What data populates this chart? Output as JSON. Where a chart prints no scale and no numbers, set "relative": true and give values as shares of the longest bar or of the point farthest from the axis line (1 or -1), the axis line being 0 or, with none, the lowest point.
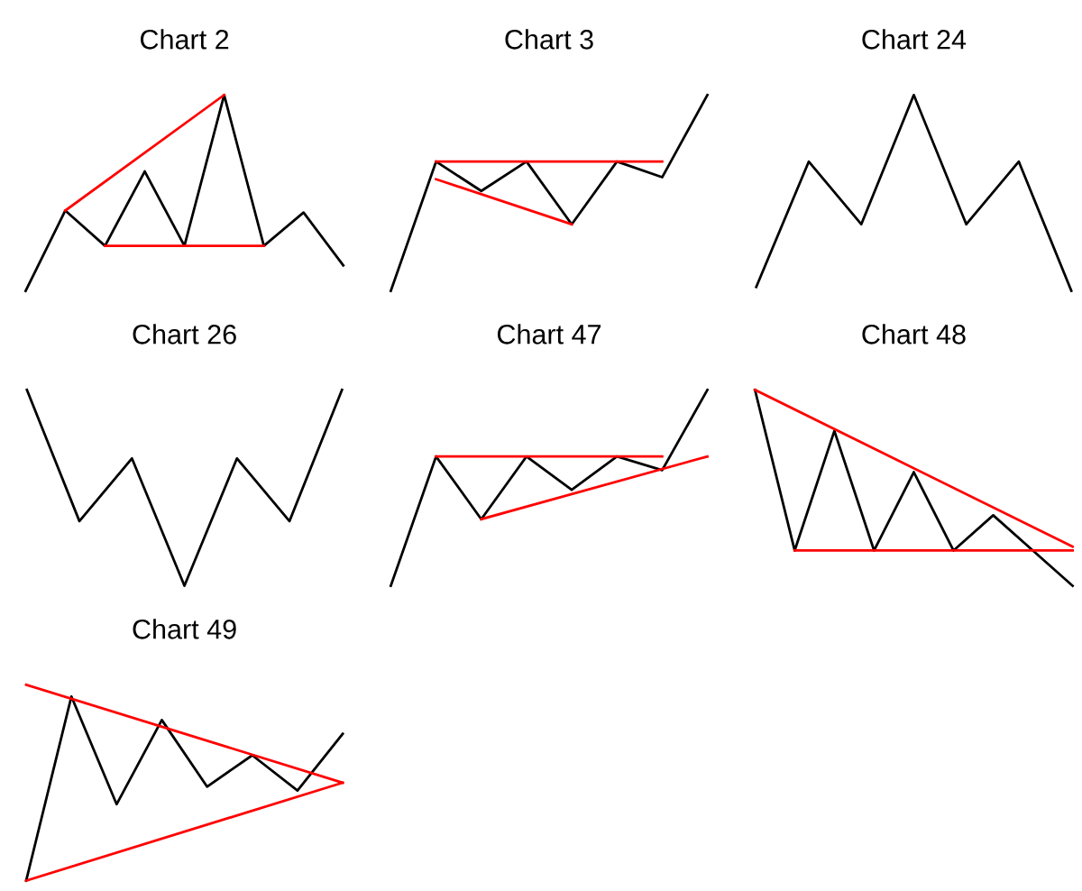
{
  "chart_data": [
    {
      "type": "line",
      "title": "Chart 2",
      "relative": true,
      "categories": [
        null,
        null,
        null,
        null,
        null,
        null,
        null,
        null,
        null
      ],
      "series": [
        {
          "color": "#000000",
          "values": [
            0,
            0.41,
            0.23,
            0.61,
            0.23,
            1,
            0.23,
            0.4,
            0.13
          ]
        },
        {
          "color": "#ff0000",
          "values": [
            null,
            0.41,
            null,
            null,
            null,
            1,
            null,
            null,
            null
          ]
        },
        {
          "color": "#ff0000",
          "values": [
            null,
            null,
            0.23,
            null,
            null,
            null,
            0.23,
            null,
            null
          ]
        }
      ]
    },
    {
      "type": "line",
      "title": "Chart 3",
      "relative": true,
      "categories": [
        null,
        null,
        null,
        null,
        null,
        null,
        null,
        null
      ],
      "series": [
        {
          "color": "#000000",
          "values": [
            0,
            0.66,
            0.51,
            0.66,
            0.34,
            0.66,
            0.58,
            1
          ]
        },
        {
          "color": "#ff0000",
          "values": [
            null,
            0.66,
            null,
            null,
            null,
            null,
            0.66,
            null
          ]
        },
        {
          "color": "#ff0000",
          "values": [
            null,
            0.57,
            null,
            null,
            0.34,
            null,
            null,
            null
          ]
        }
      ]
    },
    {
      "type": "line",
      "title": "Chart 24",
      "relative": true,
      "categories": [
        null,
        null,
        null,
        null,
        null,
        null,
        null
      ],
      "series": [
        {
          "color": "#000000",
          "values": [
            0.02,
            0.66,
            0.34,
            1,
            0.34,
            0.66,
            0
          ]
        }
      ]
    },
    {
      "type": "line",
      "title": "Chart 26",
      "relative": true,
      "categories": [
        null,
        null,
        null,
        null,
        null,
        null,
        null
      ],
      "series": [
        {
          "color": "#000000",
          "values": [
            1,
            0.33,
            0.65,
            0,
            0.65,
            0.33,
            1
          ]
        }
      ]
    },
    {
      "type": "line",
      "title": "Chart 47",
      "relative": true,
      "categories": [
        null,
        null,
        null,
        null,
        null,
        null,
        null,
        null
      ],
      "series": [
        {
          "color": "#000000",
          "values": [
            0,
            0.66,
            0.34,
            0.66,
            0.49,
            0.66,
            0.59,
            1
          ]
        },
        {
          "color": "#ff0000",
          "values": [
            null,
            0.66,
            null,
            null,
            null,
            null,
            0.66,
            null
          ]
        },
        {
          "color": "#ff0000",
          "values": [
            null,
            null,
            0.34,
            null,
            null,
            null,
            null,
            0.66
          ]
        }
      ]
    },
    {
      "type": "line",
      "title": "Chart 48",
      "relative": true,
      "categories": [
        null,
        null,
        null,
        null,
        null,
        null,
        null,
        null,
        null
      ],
      "series": [
        {
          "color": "#000000",
          "values": [
            1,
            0.18,
            0.79,
            0.18,
            0.58,
            0.18,
            0.36,
            0.18,
            0
          ]
        },
        {
          "color": "#ff0000",
          "values": [
            1,
            null,
            null,
            null,
            null,
            null,
            null,
            null,
            0.2
          ]
        },
        {
          "color": "#ff0000",
          "values": [
            null,
            0.18,
            null,
            null,
            null,
            null,
            null,
            null,
            0.18
          ]
        }
      ]
    },
    {
      "type": "line",
      "title": "Chart 49",
      "relative": true,
      "categories": [
        null,
        null,
        null,
        null,
        null,
        null,
        null,
        null
      ],
      "series": [
        {
          "color": "#000000",
          "values": [
            0,
            0.94,
            0.39,
            0.82,
            0.48,
            0.64,
            0.46,
            0.75
          ]
        },
        {
          "color": "#ff0000",
          "values": [
            1,
            null,
            null,
            null,
            null,
            null,
            null,
            0.5
          ]
        },
        {
          "color": "#ff0000",
          "values": [
            0,
            null,
            null,
            null,
            null,
            null,
            null,
            0.5
          ]
        }
      ]
    }
  ]
}
